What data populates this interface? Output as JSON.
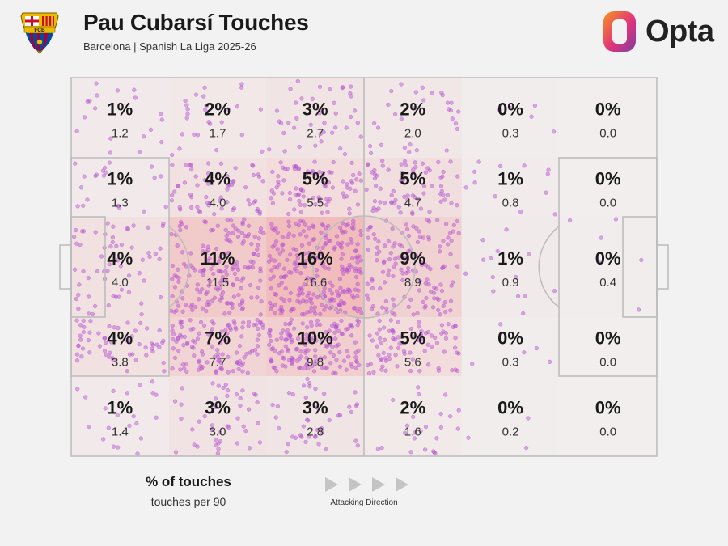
{
  "header": {
    "title": "Pau Cubarsí Touches",
    "subtitle": "Barcelona | Spanish La Liga 2025-26",
    "brand": "Opta",
    "crest_text": "FCB"
  },
  "legend": {
    "pct_label": "% of touches",
    "per90_label": "touches per 90",
    "direction_label": "Attacking Direction"
  },
  "colors": {
    "background": "#f2f2f2",
    "pitch_lines": "#bdbdbd",
    "zone_heat": "#f08c8c",
    "touch_dots": "#b44fd0",
    "opta_orange": "#f7941d",
    "opta_purple": "#a23c97",
    "barca_blue": "#004d98",
    "barca_red": "#a50044"
  },
  "chart_data": {
    "type": "heatmap",
    "title": "Pau Cubarsí Touches",
    "subtitle": "Barcelona | Spanish La Liga 2025-26",
    "rows": 5,
    "cols": 6,
    "attacking_direction": "left-to-right",
    "zones": [
      [
        {
          "pct": "1%",
          "per90": "1.2"
        },
        {
          "pct": "2%",
          "per90": "1.7"
        },
        {
          "pct": "3%",
          "per90": "2.7"
        },
        {
          "pct": "2%",
          "per90": "2.0"
        },
        {
          "pct": "0%",
          "per90": "0.3"
        },
        {
          "pct": "0%",
          "per90": "0.0"
        }
      ],
      [
        {
          "pct": "1%",
          "per90": "1.3"
        },
        {
          "pct": "4%",
          "per90": "4.0"
        },
        {
          "pct": "5%",
          "per90": "5.5"
        },
        {
          "pct": "5%",
          "per90": "4.7"
        },
        {
          "pct": "1%",
          "per90": "0.8"
        },
        {
          "pct": "0%",
          "per90": "0.0"
        }
      ],
      [
        {
          "pct": "4%",
          "per90": "4.0"
        },
        {
          "pct": "11%",
          "per90": "11.5"
        },
        {
          "pct": "16%",
          "per90": "16.6"
        },
        {
          "pct": "9%",
          "per90": "8.9"
        },
        {
          "pct": "1%",
          "per90": "0.9"
        },
        {
          "pct": "0%",
          "per90": "0.4"
        }
      ],
      [
        {
          "pct": "4%",
          "per90": "3.8"
        },
        {
          "pct": "7%",
          "per90": "7.7"
        },
        {
          "pct": "10%",
          "per90": "9.8"
        },
        {
          "pct": "5%",
          "per90": "5.6"
        },
        {
          "pct": "0%",
          "per90": "0.3"
        },
        {
          "pct": "0%",
          "per90": "0.0"
        }
      ],
      [
        {
          "pct": "1%",
          "per90": "1.4"
        },
        {
          "pct": "3%",
          "per90": "3.0"
        },
        {
          "pct": "3%",
          "per90": "2.8"
        },
        {
          "pct": "2%",
          "per90": "1.6"
        },
        {
          "pct": "0%",
          "per90": "0.2"
        },
        {
          "pct": "0%",
          "per90": "0.0"
        }
      ]
    ],
    "legend": {
      "primary": "% of touches",
      "secondary": "touches per 90"
    }
  }
}
